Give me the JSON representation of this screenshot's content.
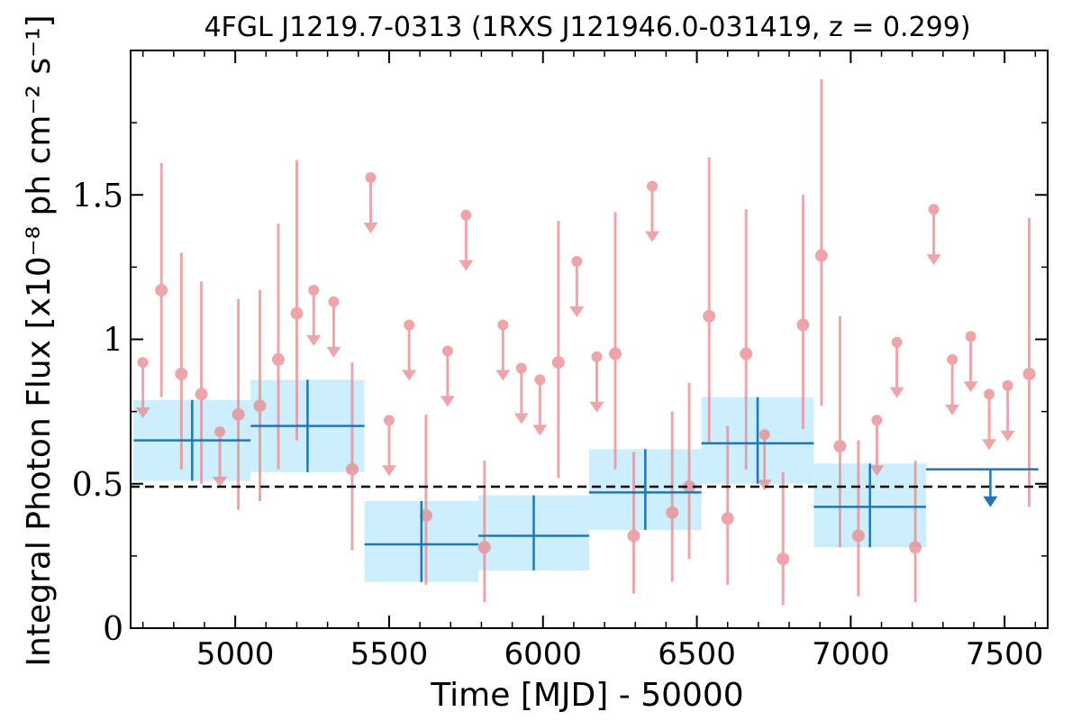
{
  "chart_data": {
    "type": "scatter",
    "title": "4FGL J1219.7-0313 (1RXS J121946.0-031419, z = 0.299)",
    "xlabel": "Time [MJD] - 50000",
    "ylabel": "Integral Photon Flux [x10⁻⁸ ph cm⁻² s⁻¹]",
    "xlim": [
      4660,
      7640
    ],
    "ylim": [
      0,
      2.0
    ],
    "xticks": [
      5000,
      5500,
      6000,
      6500,
      7000,
      7500
    ],
    "xtick_labels": [
      "5000",
      "5500",
      "6000",
      "6500",
      "7000",
      "7500"
    ],
    "yticks": [
      0,
      0.5,
      1,
      1.5
    ],
    "ytick_labels": [
      "0",
      "0.5",
      "1",
      "1.5"
    ],
    "mean_flux": 0.49,
    "colors": {
      "monthly": "#e8888e",
      "yearly": "#1f77b4",
      "yearly_band": "#cdeefc",
      "mean_line": "#000000"
    },
    "series": [
      {
        "key": "monthly",
        "points": [
          {
            "x": 4760,
            "y": 1.17,
            "lo": 0.8,
            "hi": 1.61
          },
          {
            "x": 4825,
            "y": 0.88,
            "lo": 0.55,
            "hi": 1.3
          },
          {
            "x": 4890,
            "y": 0.81,
            "lo": 0.5,
            "hi": 1.2
          },
          {
            "x": 5010,
            "y": 0.74,
            "lo": 0.41,
            "hi": 1.14
          },
          {
            "x": 5080,
            "y": 0.77,
            "lo": 0.44,
            "hi": 1.17
          },
          {
            "x": 5140,
            "y": 0.93,
            "lo": 0.55,
            "hi": 1.4
          },
          {
            "x": 5200,
            "y": 1.09,
            "lo": 0.65,
            "hi": 1.62
          },
          {
            "x": 5380,
            "y": 0.55,
            "lo": 0.27,
            "hi": 0.92
          },
          {
            "x": 5620,
            "y": 0.39,
            "lo": 0.15,
            "hi": 0.74
          },
          {
            "x": 5810,
            "y": 0.28,
            "lo": 0.09,
            "hi": 0.58
          },
          {
            "x": 6050,
            "y": 0.92,
            "lo": 0.52,
            "hi": 1.41
          },
          {
            "x": 6235,
            "y": 0.95,
            "lo": 0.55,
            "hi": 1.44
          },
          {
            "x": 6295,
            "y": 0.32,
            "lo": 0.12,
            "hi": 0.61
          },
          {
            "x": 6420,
            "y": 0.4,
            "lo": 0.16,
            "hi": 0.75
          },
          {
            "x": 6475,
            "y": 0.49,
            "lo": 0.24,
            "hi": 0.85
          },
          {
            "x": 6540,
            "y": 1.08,
            "lo": 0.64,
            "hi": 1.63
          },
          {
            "x": 6600,
            "y": 0.38,
            "lo": 0.15,
            "hi": 0.7
          },
          {
            "x": 6660,
            "y": 0.95,
            "lo": 0.55,
            "hi": 1.45
          },
          {
            "x": 6780,
            "y": 0.24,
            "lo": 0.08,
            "hi": 0.54
          },
          {
            "x": 6845,
            "y": 1.05,
            "lo": 0.69,
            "hi": 1.5
          },
          {
            "x": 6905,
            "y": 1.29,
            "lo": 0.77,
            "hi": 1.9
          },
          {
            "x": 6965,
            "y": 0.63,
            "lo": 0.28,
            "hi": 1.08
          },
          {
            "x": 7025,
            "y": 0.32,
            "lo": 0.11,
            "hi": 0.65
          },
          {
            "x": 7210,
            "y": 0.28,
            "lo": 0.09,
            "hi": 0.58
          },
          {
            "x": 7580,
            "y": 0.88,
            "lo": 0.42,
            "hi": 1.42
          }
        ],
        "upper_limits": [
          {
            "x": 4700,
            "y": 0.92
          },
          {
            "x": 4950,
            "y": 0.68
          },
          {
            "x": 5255,
            "y": 1.17
          },
          {
            "x": 5320,
            "y": 1.13
          },
          {
            "x": 5440,
            "y": 1.56
          },
          {
            "x": 5500,
            "y": 0.72
          },
          {
            "x": 5565,
            "y": 1.05
          },
          {
            "x": 5690,
            "y": 0.96
          },
          {
            "x": 5750,
            "y": 1.43
          },
          {
            "x": 5870,
            "y": 1.05
          },
          {
            "x": 5930,
            "y": 0.9
          },
          {
            "x": 5990,
            "y": 0.86
          },
          {
            "x": 6110,
            "y": 1.27
          },
          {
            "x": 6175,
            "y": 0.94
          },
          {
            "x": 6355,
            "y": 1.53
          },
          {
            "x": 6720,
            "y": 0.67
          },
          {
            "x": 7085,
            "y": 0.72
          },
          {
            "x": 7150,
            "y": 0.99
          },
          {
            "x": 7270,
            "y": 1.45
          },
          {
            "x": 7330,
            "y": 0.93
          },
          {
            "x": 7390,
            "y": 1.01
          },
          {
            "x": 7450,
            "y": 0.81
          },
          {
            "x": 7510,
            "y": 0.84
          }
        ]
      },
      {
        "key": "yearly",
        "bins": [
          {
            "x0": 4670,
            "x1": 5050,
            "y": 0.65,
            "lo": 0.51,
            "hi": 0.79
          },
          {
            "x0": 5050,
            "x1": 5420,
            "y": 0.7,
            "lo": 0.54,
            "hi": 0.86
          },
          {
            "x0": 5420,
            "x1": 5790,
            "y": 0.29,
            "lo": 0.16,
            "hi": 0.44
          },
          {
            "x0": 5790,
            "x1": 6150,
            "y": 0.32,
            "lo": 0.2,
            "hi": 0.46
          },
          {
            "x0": 6150,
            "x1": 6515,
            "y": 0.47,
            "lo": 0.34,
            "hi": 0.62
          },
          {
            "x0": 6515,
            "x1": 6880,
            "y": 0.64,
            "lo": 0.5,
            "hi": 0.8
          },
          {
            "x0": 6880,
            "x1": 7245,
            "y": 0.42,
            "lo": 0.28,
            "hi": 0.57
          }
        ],
        "upper_limits": [
          {
            "x0": 7245,
            "x1": 7610,
            "y": 0.55
          }
        ]
      }
    ]
  }
}
